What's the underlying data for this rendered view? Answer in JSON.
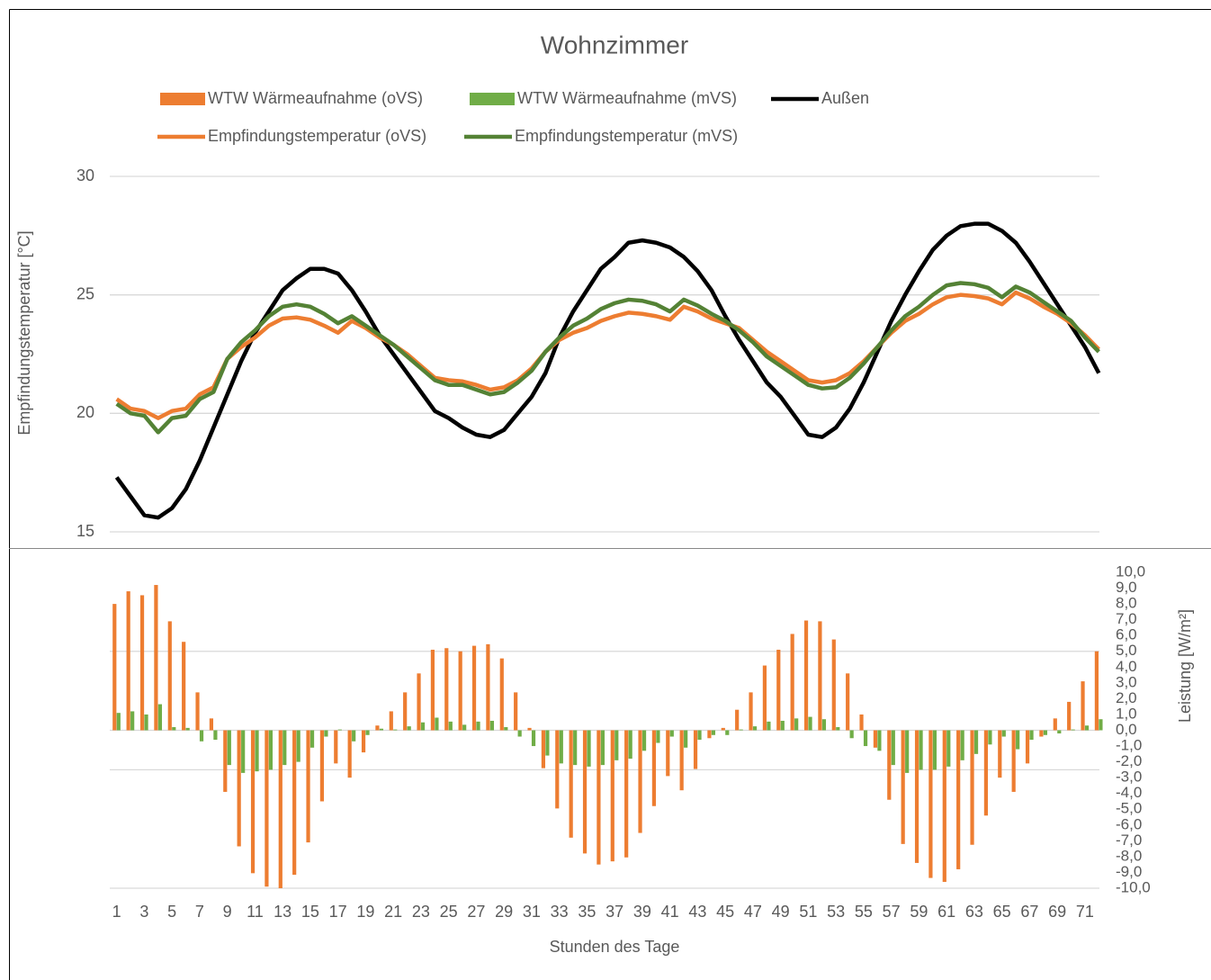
{
  "chart_data": {
    "type": "combo",
    "title": "Wohnzimmer",
    "xlabel": "Stunden des Tage",
    "ylabel": "Empfindungstemperatur [°C]",
    "y2label": "Leistung [W/m²]",
    "categories": [
      1,
      null,
      3,
      null,
      5,
      null,
      7,
      null,
      9,
      null,
      11,
      null,
      13,
      null,
      15,
      null,
      17,
      null,
      19,
      null,
      21,
      null,
      23,
      null,
      25,
      null,
      27,
      null,
      29,
      null,
      31,
      null,
      33,
      null,
      35,
      null,
      37,
      null,
      39,
      null,
      41,
      null,
      43,
      null,
      45,
      null,
      47,
      null,
      49,
      null,
      51,
      null,
      53,
      null,
      55,
      null,
      57,
      null,
      59,
      null,
      61,
      null,
      63,
      null,
      65,
      null,
      67,
      null,
      69,
      null,
      71,
      null
    ],
    "ylim": [
      15,
      30
    ],
    "yticks": [
      15,
      20,
      25,
      30
    ],
    "grid": true,
    "y2lim": [
      -10,
      10
    ],
    "y2ticks": [
      {
        "value": 10,
        "label": "10,0"
      },
      {
        "value": 9,
        "label": "9,0"
      },
      {
        "value": 8,
        "label": "8,0"
      },
      {
        "value": 7,
        "label": "7,0"
      },
      {
        "value": 6,
        "label": "6,0"
      },
      {
        "value": 5,
        "label": "5,0"
      },
      {
        "value": 4,
        "label": "4,0"
      },
      {
        "value": 3,
        "label": "3,0"
      },
      {
        "value": 2,
        "label": "2,0"
      },
      {
        "value": 1,
        "label": "1,0"
      },
      {
        "value": 0,
        "label": "0,0"
      },
      {
        "value": -1,
        "label": "-1,0"
      },
      {
        "value": -2,
        "label": "-2,0"
      },
      {
        "value": -3,
        "label": "-3,0"
      },
      {
        "value": -4,
        "label": "-4,0"
      },
      {
        "value": -5,
        "label": "-5,0"
      },
      {
        "value": -6,
        "label": "-6,0"
      },
      {
        "value": -7,
        "label": "-7,0"
      },
      {
        "value": -8,
        "label": "-8,0"
      },
      {
        "value": -9,
        "label": "-9,0"
      },
      {
        "value": -10,
        "label": "-10,0"
      }
    ],
    "y2grid": [
      5,
      -2.5,
      -10
    ],
    "series": [
      {
        "name": "WTW Wärmeaufnahme (oVS)",
        "type": "bar",
        "axis": "y2",
        "color": "#ED7D31",
        "values": [
          8.0,
          8.8,
          8.55,
          9.2,
          6.9,
          5.6,
          2.4,
          0.75,
          -3.9,
          -7.35,
          -9.05,
          -9.9,
          -10.0,
          -9.15,
          -7.1,
          -4.5,
          -2.1,
          -3.0,
          -1.4,
          0.3,
          1.2,
          2.4,
          3.6,
          5.1,
          5.2,
          5.0,
          5.35,
          5.45,
          4.55,
          2.4,
          0.15,
          -2.4,
          -4.95,
          -6.8,
          -7.8,
          -8.5,
          -8.3,
          -8.05,
          -6.5,
          -4.8,
          -2.9,
          -3.8,
          -2.45,
          -0.5,
          0.15,
          1.3,
          2.4,
          4.1,
          5.1,
          6.1,
          6.95,
          6.9,
          5.75,
          3.6,
          1.0,
          -1.1,
          -4.4,
          -7.2,
          -8.4,
          -9.35,
          -9.6,
          -8.8,
          -7.25,
          -5.4,
          -3.0,
          -3.9,
          -2.1,
          -0.4,
          0.75,
          1.8,
          3.1,
          5.0
        ]
      },
      {
        "name": "WTW Wärmeaufnahme (mVS)",
        "type": "bar",
        "axis": "y2",
        "color": "#70AD47",
        "values": [
          1.1,
          1.2,
          1.0,
          1.65,
          0.2,
          0.15,
          -0.7,
          -0.6,
          -2.2,
          -2.7,
          -2.6,
          -2.5,
          -2.2,
          -2.0,
          -1.1,
          -0.4,
          0.05,
          -0.7,
          -0.3,
          0.1,
          0.05,
          0.25,
          0.5,
          0.8,
          0.55,
          0.35,
          0.55,
          0.6,
          0.2,
          -0.4,
          -1.0,
          -1.6,
          -2.1,
          -2.2,
          -2.3,
          -2.2,
          -1.9,
          -1.8,
          -1.3,
          -0.8,
          -0.4,
          -1.1,
          -0.6,
          -0.3,
          -0.3,
          0.05,
          0.25,
          0.55,
          0.6,
          0.75,
          0.85,
          0.7,
          0.2,
          -0.5,
          -1.0,
          -1.3,
          -2.2,
          -2.7,
          -2.5,
          -2.5,
          -2.3,
          -1.9,
          -1.5,
          -0.9,
          -0.4,
          -1.2,
          -0.6,
          -0.3,
          -0.2,
          0.05,
          0.3,
          0.7
        ]
      },
      {
        "name": "Außen",
        "type": "line",
        "axis": "y",
        "color": "#000000",
        "values": [
          17.3,
          16.5,
          15.7,
          15.6,
          16.0,
          16.8,
          18.0,
          19.4,
          20.8,
          22.2,
          23.4,
          24.3,
          25.2,
          25.7,
          26.1,
          26.1,
          25.9,
          25.2,
          24.3,
          23.3,
          22.5,
          21.7,
          20.9,
          20.1,
          19.8,
          19.4,
          19.1,
          19.0,
          19.3,
          20.0,
          20.7,
          21.7,
          23.2,
          24.3,
          25.2,
          26.1,
          26.6,
          27.2,
          27.3,
          27.2,
          27.0,
          26.6,
          26.0,
          25.2,
          24.1,
          23.1,
          22.2,
          21.3,
          20.7,
          19.9,
          19.1,
          19.0,
          19.4,
          20.2,
          21.3,
          22.6,
          23.9,
          25.0,
          26.0,
          26.9,
          27.5,
          27.9,
          28.0,
          28.0,
          27.7,
          27.2,
          26.4,
          25.5,
          24.6,
          23.7,
          22.8,
          21.7
        ]
      },
      {
        "name": "Empfindungstemperatur (oVS)",
        "type": "line",
        "axis": "y",
        "color": "#ED7D31",
        "values": [
          20.6,
          20.2,
          20.1,
          19.8,
          20.1,
          20.2,
          20.8,
          21.1,
          22.3,
          22.8,
          23.2,
          23.7,
          24.0,
          24.05,
          23.95,
          23.7,
          23.4,
          23.9,
          23.6,
          23.2,
          22.9,
          22.5,
          22.0,
          21.5,
          21.4,
          21.35,
          21.2,
          21.0,
          21.1,
          21.4,
          21.9,
          22.6,
          23.1,
          23.4,
          23.6,
          23.9,
          24.1,
          24.25,
          24.2,
          24.1,
          23.95,
          24.5,
          24.3,
          24.0,
          23.8,
          23.6,
          23.1,
          22.6,
          22.2,
          21.8,
          21.4,
          21.3,
          21.4,
          21.7,
          22.2,
          22.8,
          23.4,
          23.9,
          24.2,
          24.6,
          24.9,
          25.0,
          24.95,
          24.85,
          24.6,
          25.1,
          24.85,
          24.5,
          24.2,
          23.8,
          23.3,
          22.7
        ]
      },
      {
        "name": "Empfindungstemperatur (mVS)",
        "type": "line",
        "axis": "y",
        "color": "#548235",
        "values": [
          20.4,
          20.0,
          19.9,
          19.2,
          19.8,
          19.9,
          20.6,
          20.9,
          22.3,
          23.0,
          23.5,
          24.1,
          24.5,
          24.6,
          24.5,
          24.2,
          23.8,
          24.1,
          23.7,
          23.3,
          22.9,
          22.4,
          21.9,
          21.4,
          21.2,
          21.2,
          21.0,
          20.8,
          20.9,
          21.3,
          21.8,
          22.6,
          23.2,
          23.7,
          24.0,
          24.4,
          24.65,
          24.8,
          24.75,
          24.6,
          24.3,
          24.8,
          24.55,
          24.2,
          23.9,
          23.5,
          23.0,
          22.4,
          22.0,
          21.6,
          21.2,
          21.05,
          21.1,
          21.5,
          22.1,
          22.8,
          23.5,
          24.1,
          24.5,
          25.0,
          25.4,
          25.5,
          25.45,
          25.3,
          24.9,
          25.35,
          25.1,
          24.7,
          24.3,
          23.9,
          23.2,
          22.6
        ]
      }
    ]
  }
}
